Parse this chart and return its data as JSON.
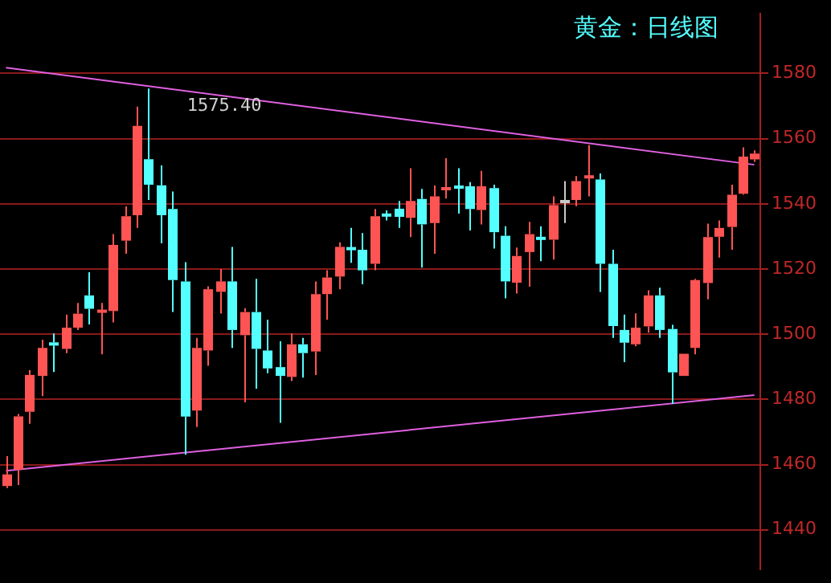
{
  "chart_data": {
    "type": "candlestick",
    "title": "黄金：日线图",
    "categories": [
      null,
      null,
      null,
      null,
      null,
      null,
      null,
      null,
      null,
      null,
      null,
      null,
      null,
      null,
      null,
      null,
      null,
      null,
      null,
      null,
      null,
      null,
      null,
      null,
      null,
      null,
      null,
      null,
      null,
      null,
      null,
      null,
      null,
      null,
      null,
      null,
      null,
      null,
      null,
      null,
      null,
      null,
      null,
      null,
      null,
      null,
      null,
      null,
      null,
      null,
      null,
      null,
      null,
      null,
      null,
      null,
      null,
      null,
      null,
      null,
      null,
      null,
      null,
      null
    ],
    "ohlc": [
      [
        1453.4,
        1462.6,
        1452.8,
        1457
      ],
      [
        1458.4,
        1475.5,
        1453.7,
        1474.8
      ],
      [
        1476.2,
        1489,
        1472.5,
        1487.5
      ],
      [
        1487.2,
        1498.3,
        1481,
        1495.8
      ],
      [
        1497.5,
        1500.2,
        1488.4,
        1496.5
      ],
      [
        1495.5,
        1506,
        1494.2,
        1502
      ],
      [
        1502,
        1509.6,
        1501.3,
        1506.3
      ],
      [
        1511.9,
        1519,
        1503,
        1507.8
      ],
      [
        1506.8,
        1509.6,
        1493.8,
        1507.3
      ],
      [
        1507.1,
        1530.7,
        1503.6,
        1527.4
      ],
      [
        1528.7,
        1539.2,
        1524.7,
        1536.2
      ],
      [
        1536.5,
        1569.8,
        1532.6,
        1563.9
      ],
      [
        1553.7,
        1575.4,
        1541.2,
        1545.9
      ],
      [
        1545.7,
        1551.8,
        1527.9,
        1536.5
      ],
      [
        1538.4,
        1543.8,
        1506.8,
        1516.6
      ],
      [
        1516.2,
        1522.1,
        1463,
        1474.7
      ],
      [
        1476.6,
        1498.9,
        1471.5,
        1495.8
      ],
      [
        1495,
        1514.7,
        1490.3,
        1513.8
      ],
      [
        1513,
        1520,
        1506.3,
        1516.2
      ],
      [
        1516.2,
        1526.8,
        1495.8,
        1501.3
      ],
      [
        1499.7,
        1508,
        1479.1,
        1506.8
      ],
      [
        1506.8,
        1517,
        1483.3,
        1495.5
      ],
      [
        1495,
        1504.4,
        1488,
        1489.5
      ],
      [
        1489.9,
        1497.8,
        1472.8,
        1487.2
      ],
      [
        1486.9,
        1500.2,
        1485.6,
        1496.9
      ],
      [
        1496.9,
        1498.9,
        1486.7,
        1494.2
      ],
      [
        1494.7,
        1516.2,
        1487.5,
        1512.3
      ],
      [
        1512.3,
        1519.6,
        1504.4,
        1517.4
      ],
      [
        1517.7,
        1528.2,
        1513.8,
        1526.8
      ],
      [
        1526.5,
        1532.6,
        1521.9,
        1526
      ],
      [
        1525.9,
        1531,
        1515.3,
        1519.6
      ],
      [
        1521.6,
        1538.4,
        1519.6,
        1536.2
      ],
      [
        1536.8,
        1538,
        1534.9,
        1536.3
      ],
      [
        1538.5,
        1540.9,
        1532.6,
        1536
      ],
      [
        1535.7,
        1550.9,
        1529.8,
        1540.9
      ],
      [
        1541.5,
        1544.6,
        1520.4,
        1533.7
      ],
      [
        1534.1,
        1545.6,
        1524.7,
        1542.3
      ],
      [
        1544.3,
        1554,
        1541.6,
        1545
      ],
      [
        1545.4,
        1550.9,
        1537,
        1544.8
      ],
      [
        1545.4,
        1546.7,
        1531.8,
        1538.4
      ],
      [
        1538.1,
        1550.1,
        1533.7,
        1545.4
      ],
      [
        1544.8,
        1545.9,
        1526.3,
        1531.3
      ],
      [
        1530.2,
        1533.1,
        1511,
        1516.2
      ],
      [
        1515.8,
        1526.6,
        1512.5,
        1524
      ],
      [
        1525.2,
        1534.5,
        1514.6,
        1530.7
      ],
      [
        1529.6,
        1533.1,
        1522.4,
        1529.2
      ],
      [
        1529,
        1542.3,
        1522.9,
        1539.6
      ],
      [
        1540.7,
        1547,
        1534.1,
        1540.7
      ],
      [
        1541.2,
        1548.5,
        1539.3,
        1547
      ],
      [
        1548,
        1558,
        1542.3,
        1548.5
      ],
      [
        1547.5,
        1549.3,
        1513,
        1521.6
      ],
      [
        1521.6,
        1525.9,
        1498.9,
        1502.5
      ],
      [
        1501.3,
        1506,
        1491.4,
        1497.4
      ],
      [
        1496.9,
        1506.4,
        1496.3,
        1502
      ],
      [
        1502.4,
        1513.5,
        1500.5,
        1511.9
      ],
      [
        1511.9,
        1514.3,
        1498.9,
        1501.3
      ],
      [
        1501.6,
        1502.9,
        1478.6,
        1488.3
      ],
      [
        1487.2,
        1494,
        1487.2,
        1494
      ],
      [
        1495.8,
        1517,
        1493.8,
        1516.6
      ],
      [
        1515.7,
        1533.9,
        1510.7,
        1529.8
      ],
      [
        1529.9,
        1534.9,
        1523.5,
        1532.6
      ],
      [
        1532.9,
        1545.9,
        1525.9,
        1542.8
      ],
      [
        1543.1,
        1557.3,
        1542.8,
        1554.5
      ],
      [
        1553.6,
        1556.4,
        1552.9,
        1555.4
      ]
    ],
    "series": [
      {
        "type": "line",
        "color": "#e060e0",
        "values": [
          1581.8,
          null,
          null,
          null,
          null,
          null,
          null,
          null,
          null,
          null,
          null,
          null,
          null,
          null,
          null,
          null,
          null,
          null,
          null,
          null,
          null,
          null,
          null,
          null,
          null,
          null,
          null,
          null,
          null,
          null,
          null,
          null,
          null,
          null,
          null,
          null,
          null,
          null,
          null,
          null,
          null,
          null,
          null,
          null,
          null,
          null,
          null,
          null,
          null,
          null,
          null,
          null,
          null,
          null,
          null,
          null,
          null,
          null,
          null,
          null,
          null,
          null,
          null,
          1552
        ]
      },
      {
        "type": "line",
        "color": "#e060e0",
        "values": [
          1458.1,
          null,
          null,
          null,
          null,
          null,
          null,
          null,
          null,
          null,
          null,
          null,
          null,
          null,
          null,
          null,
          null,
          null,
          null,
          null,
          null,
          null,
          null,
          null,
          null,
          null,
          null,
          null,
          null,
          null,
          null,
          null,
          null,
          null,
          null,
          null,
          null,
          null,
          null,
          null,
          null,
          null,
          null,
          null,
          null,
          null,
          null,
          null,
          null,
          null,
          null,
          null,
          null,
          null,
          null,
          null,
          null,
          null,
          null,
          null,
          null,
          null,
          null,
          1481.3
        ]
      }
    ],
    "ylim": [
      1427.9,
      1598.3
    ],
    "yticks": [
      1440,
      1460,
      1480,
      1500,
      1520,
      1540,
      1560,
      1580
    ],
    "tick_labels": "y",
    "grid": "y",
    "legend": false,
    "annotations": [
      "1575.40"
    ]
  }
}
